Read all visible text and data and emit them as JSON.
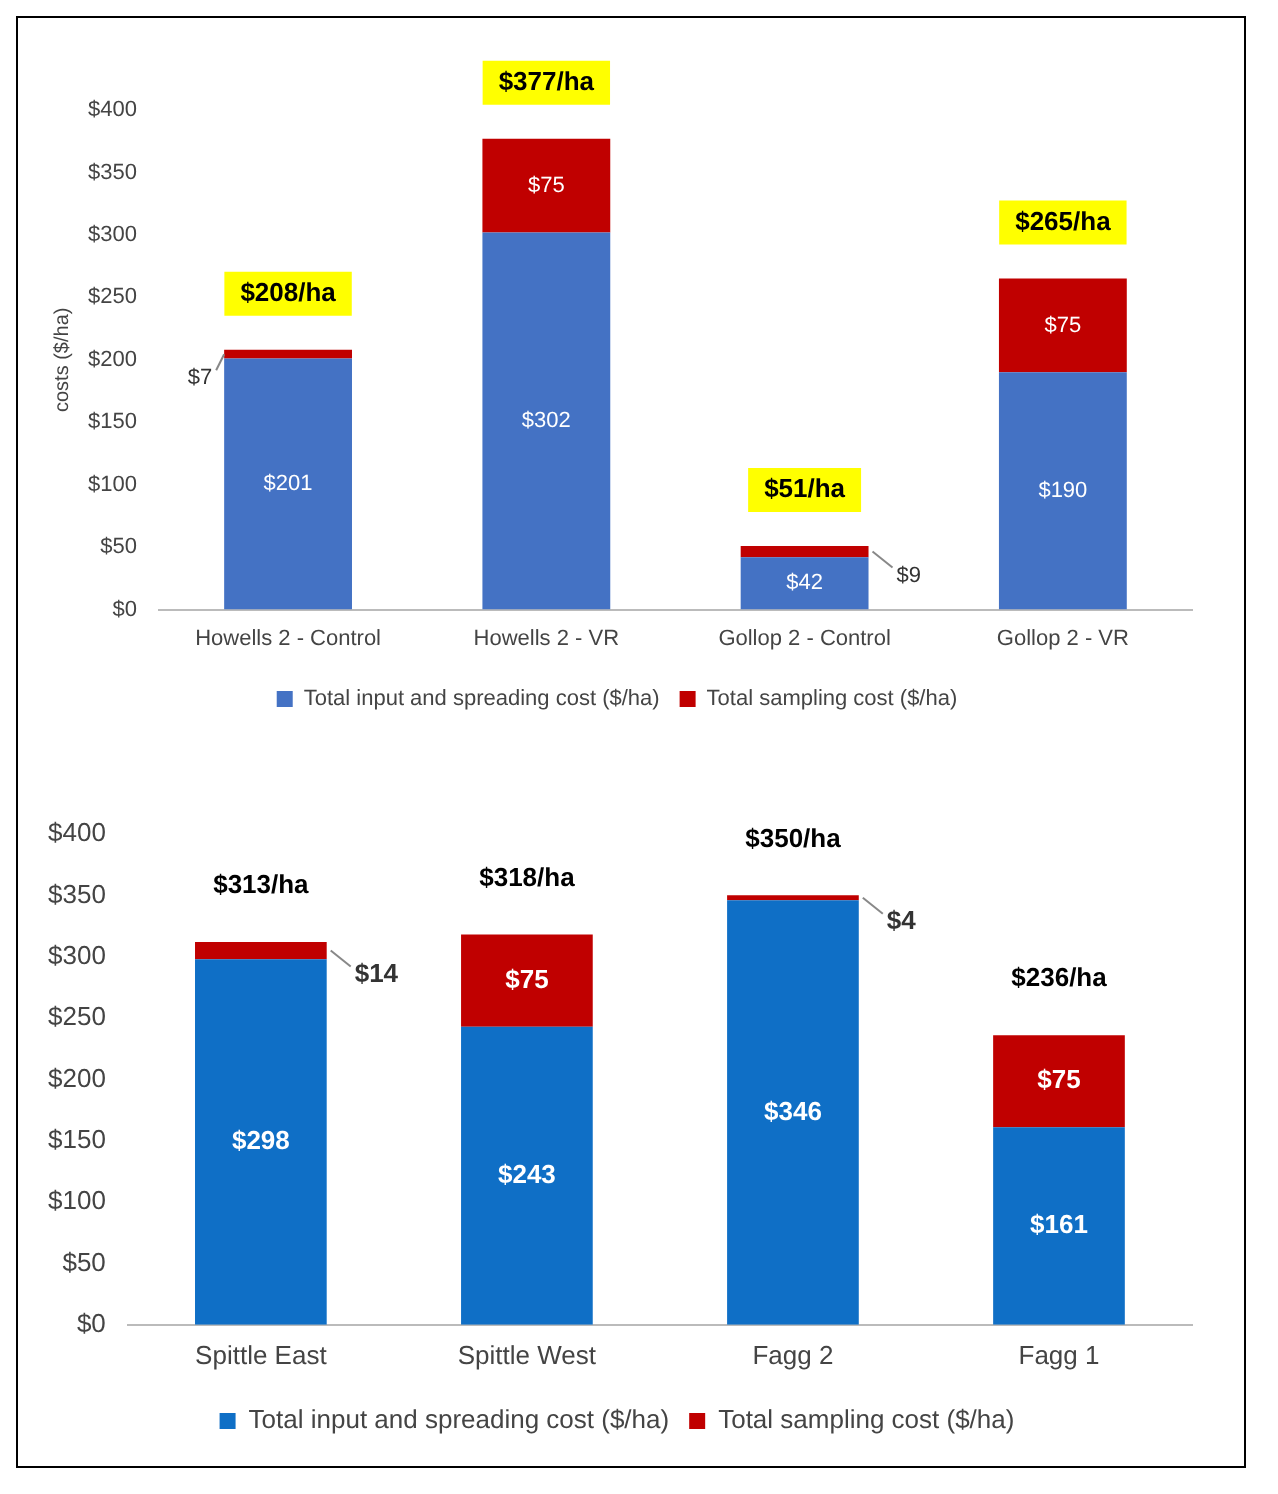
{
  "chart_data": [
    {
      "type": "bar",
      "ylabel": "costs ($/ha)",
      "categories": [
        "Howells 2 - Control",
        "Howells 2 - VR",
        "Gollop 2 - Control",
        "Gollop 2 - VR"
      ],
      "stacked": true,
      "ylim": [
        0,
        400
      ],
      "yticks": [
        {
          "value": 0,
          "label": "$0"
        },
        {
          "value": 50,
          "label": "$50"
        },
        {
          "value": 100,
          "label": "$100"
        },
        {
          "value": 150,
          "label": "$150"
        },
        {
          "value": 200,
          "label": "$200"
        },
        {
          "value": 250,
          "label": "$250"
        },
        {
          "value": 300,
          "label": "$300"
        },
        {
          "value": 350,
          "label": "$350"
        },
        {
          "value": 400,
          "label": "$400"
        }
      ],
      "series": [
        {
          "name": "Total input and spreading cost ($/ha)",
          "color": "#4472c4",
          "values": [
            201,
            302,
            42,
            190
          ],
          "value_labels": [
            "$201",
            "$302",
            "$42",
            "$190"
          ]
        },
        {
          "name": "Total sampling cost ($/ha)",
          "color": "#c00000",
          "values": [
            7,
            75,
            9,
            75
          ],
          "value_labels": [
            "$7",
            "$75",
            "$9",
            "$75"
          ]
        }
      ],
      "totals": [
        "$208/ha",
        "$377/ha",
        "$51/ha",
        "$265/ha"
      ],
      "legend": "bottom",
      "grid": false
    },
    {
      "type": "bar",
      "categories": [
        "Spittle East",
        "Spittle West",
        "Fagg 2",
        "Fagg 1"
      ],
      "stacked": true,
      "ylim": [
        0,
        400
      ],
      "yticks": [
        {
          "value": 0,
          "label": "$0"
        },
        {
          "value": 50,
          "label": "$50"
        },
        {
          "value": 100,
          "label": "$100"
        },
        {
          "value": 150,
          "label": "$150"
        },
        {
          "value": 200,
          "label": "$200"
        },
        {
          "value": 250,
          "label": "$250"
        },
        {
          "value": 300,
          "label": "$300"
        },
        {
          "value": 350,
          "label": "$350"
        },
        {
          "value": 400,
          "label": "$400"
        }
      ],
      "series": [
        {
          "name": "Total input and spreading cost ($/ha)",
          "color": "#0f6fc6",
          "values": [
            298,
            243,
            346,
            161
          ],
          "value_labels": [
            "$298",
            "$243",
            "$346",
            "$161"
          ]
        },
        {
          "name": "Total sampling cost ($/ha)",
          "color": "#c00000",
          "values": [
            14,
            75,
            4,
            75
          ],
          "value_labels": [
            "$14",
            "$75",
            "$4",
            "$75"
          ]
        }
      ],
      "totals": [
        "$313/ha",
        "$318/ha",
        "$350/ha",
        "$236/ha"
      ],
      "legend": "bottom",
      "grid": false
    }
  ]
}
